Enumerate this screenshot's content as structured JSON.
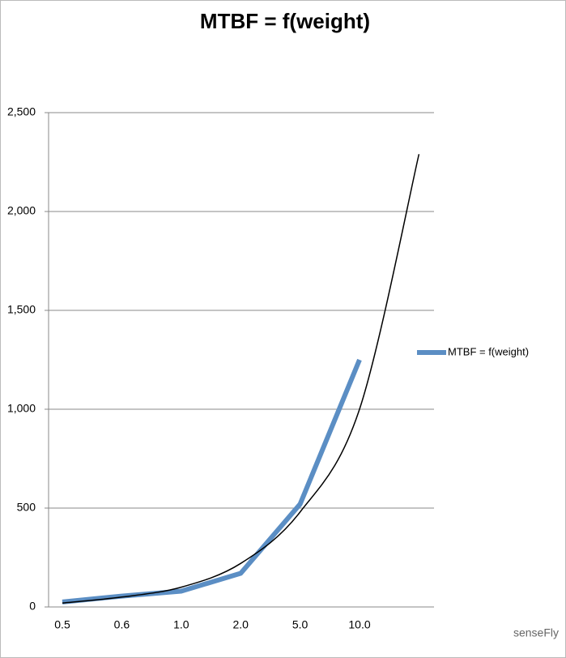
{
  "chart_data": {
    "type": "line",
    "title": "MTBF = f(weight)",
    "categories": [
      "0.5",
      "0.6",
      "1.0",
      "2.0",
      "5.0",
      "10.0",
      null
    ],
    "series": [
      {
        "name": "MTBF = f(weight)",
        "color": "#5b8ec4",
        "values": [
          25,
          55,
          80,
          170,
          520,
          1250,
          null
        ]
      },
      {
        "color": "#000000",
        "values": [
          20,
          50,
          100,
          220,
          480,
          1000,
          2290
        ]
      }
    ],
    "ylim": [
      0,
      2500
    ],
    "yticks": [
      0,
      500,
      {
        "value": 1000,
        "label": "1,000"
      },
      {
        "value": 1500,
        "label": "1,500"
      },
      {
        "value": 2000,
        "label": "2,000"
      },
      {
        "value": 2500,
        "label": "2,500"
      }
    ],
    "grid": true,
    "legend": "right",
    "watermark": "senseFly"
  }
}
